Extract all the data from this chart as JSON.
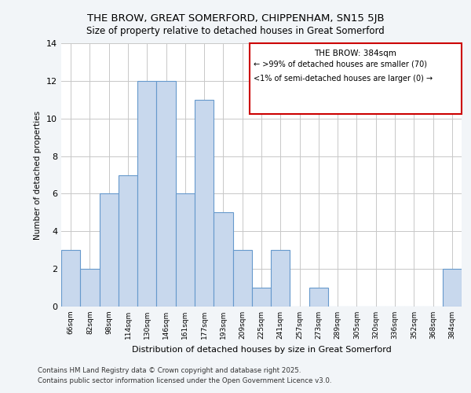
{
  "title1": "THE BROW, GREAT SOMERFORD, CHIPPENHAM, SN15 5JB",
  "title2": "Size of property relative to detached houses in Great Somerford",
  "xlabel": "Distribution of detached houses by size in Great Somerford",
  "ylabel": "Number of detached properties",
  "categories": [
    "66sqm",
    "82sqm",
    "98sqm",
    "114sqm",
    "130sqm",
    "146sqm",
    "161sqm",
    "177sqm",
    "193sqm",
    "209sqm",
    "225sqm",
    "241sqm",
    "257sqm",
    "273sqm",
    "289sqm",
    "305sqm",
    "320sqm",
    "336sqm",
    "352sqm",
    "368sqm",
    "384sqm"
  ],
  "values": [
    3,
    2,
    6,
    7,
    12,
    12,
    6,
    11,
    5,
    3,
    1,
    3,
    0,
    1,
    0,
    0,
    0,
    0,
    0,
    0,
    2
  ],
  "bar_color": "#c8d8ed",
  "bar_edge_color": "#6699cc",
  "annotation_box_edge_color": "#cc0000",
  "annotation_title": "THE BROW: 384sqm",
  "annotation_line1": "← >99% of detached houses are smaller (70)",
  "annotation_line2": "<1% of semi-detached houses are larger (0) →",
  "ylim": [
    0,
    14
  ],
  "yticks": [
    0,
    2,
    4,
    6,
    8,
    10,
    12,
    14
  ],
  "footnote1": "Contains HM Land Registry data © Crown copyright and database right 2025.",
  "footnote2": "Contains public sector information licensed under the Open Government Licence v3.0.",
  "bg_color": "#f2f5f8",
  "plot_bg_color": "#ffffff",
  "grid_color": "#c8c8c8"
}
